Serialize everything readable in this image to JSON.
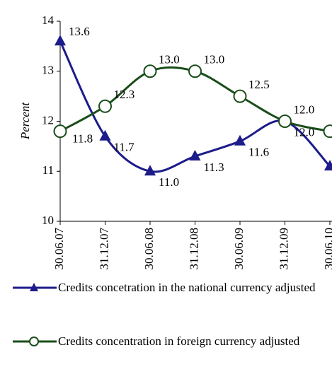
{
  "chart_data": {
    "type": "line",
    "y_label": "Percent",
    "categories": [
      "30.06.07",
      "31.12.07",
      "30.06.08",
      "31.12.08",
      "30.06.09",
      "31.12.09",
      "30.06.10"
    ],
    "series": [
      {
        "name": "Credits concetration in the national currency adjusted",
        "color": "#1c1c8a",
        "marker": "triangle",
        "values": [
          13.6,
          11.7,
          11.0,
          11.3,
          11.6,
          12.0,
          11.1
        ],
        "value_labels": [
          "13.6",
          "11.7",
          "11.0",
          "11.3",
          "11.6",
          "12.0",
          "11.1"
        ]
      },
      {
        "name": "Credits concentration in foreign currency adjusted",
        "color": "#1a4d1a",
        "marker": "circle",
        "values": [
          11.8,
          12.3,
          13.0,
          13.0,
          12.5,
          12.0,
          11.8
        ],
        "value_labels": [
          "11.8",
          "12.3",
          "13.0",
          "13.0",
          "12.5",
          "12.0",
          "11.8"
        ]
      }
    ],
    "ylim": [
      10,
      14
    ],
    "yticks": [
      10,
      11,
      12,
      13,
      14
    ],
    "grid": false,
    "smooth": true
  }
}
